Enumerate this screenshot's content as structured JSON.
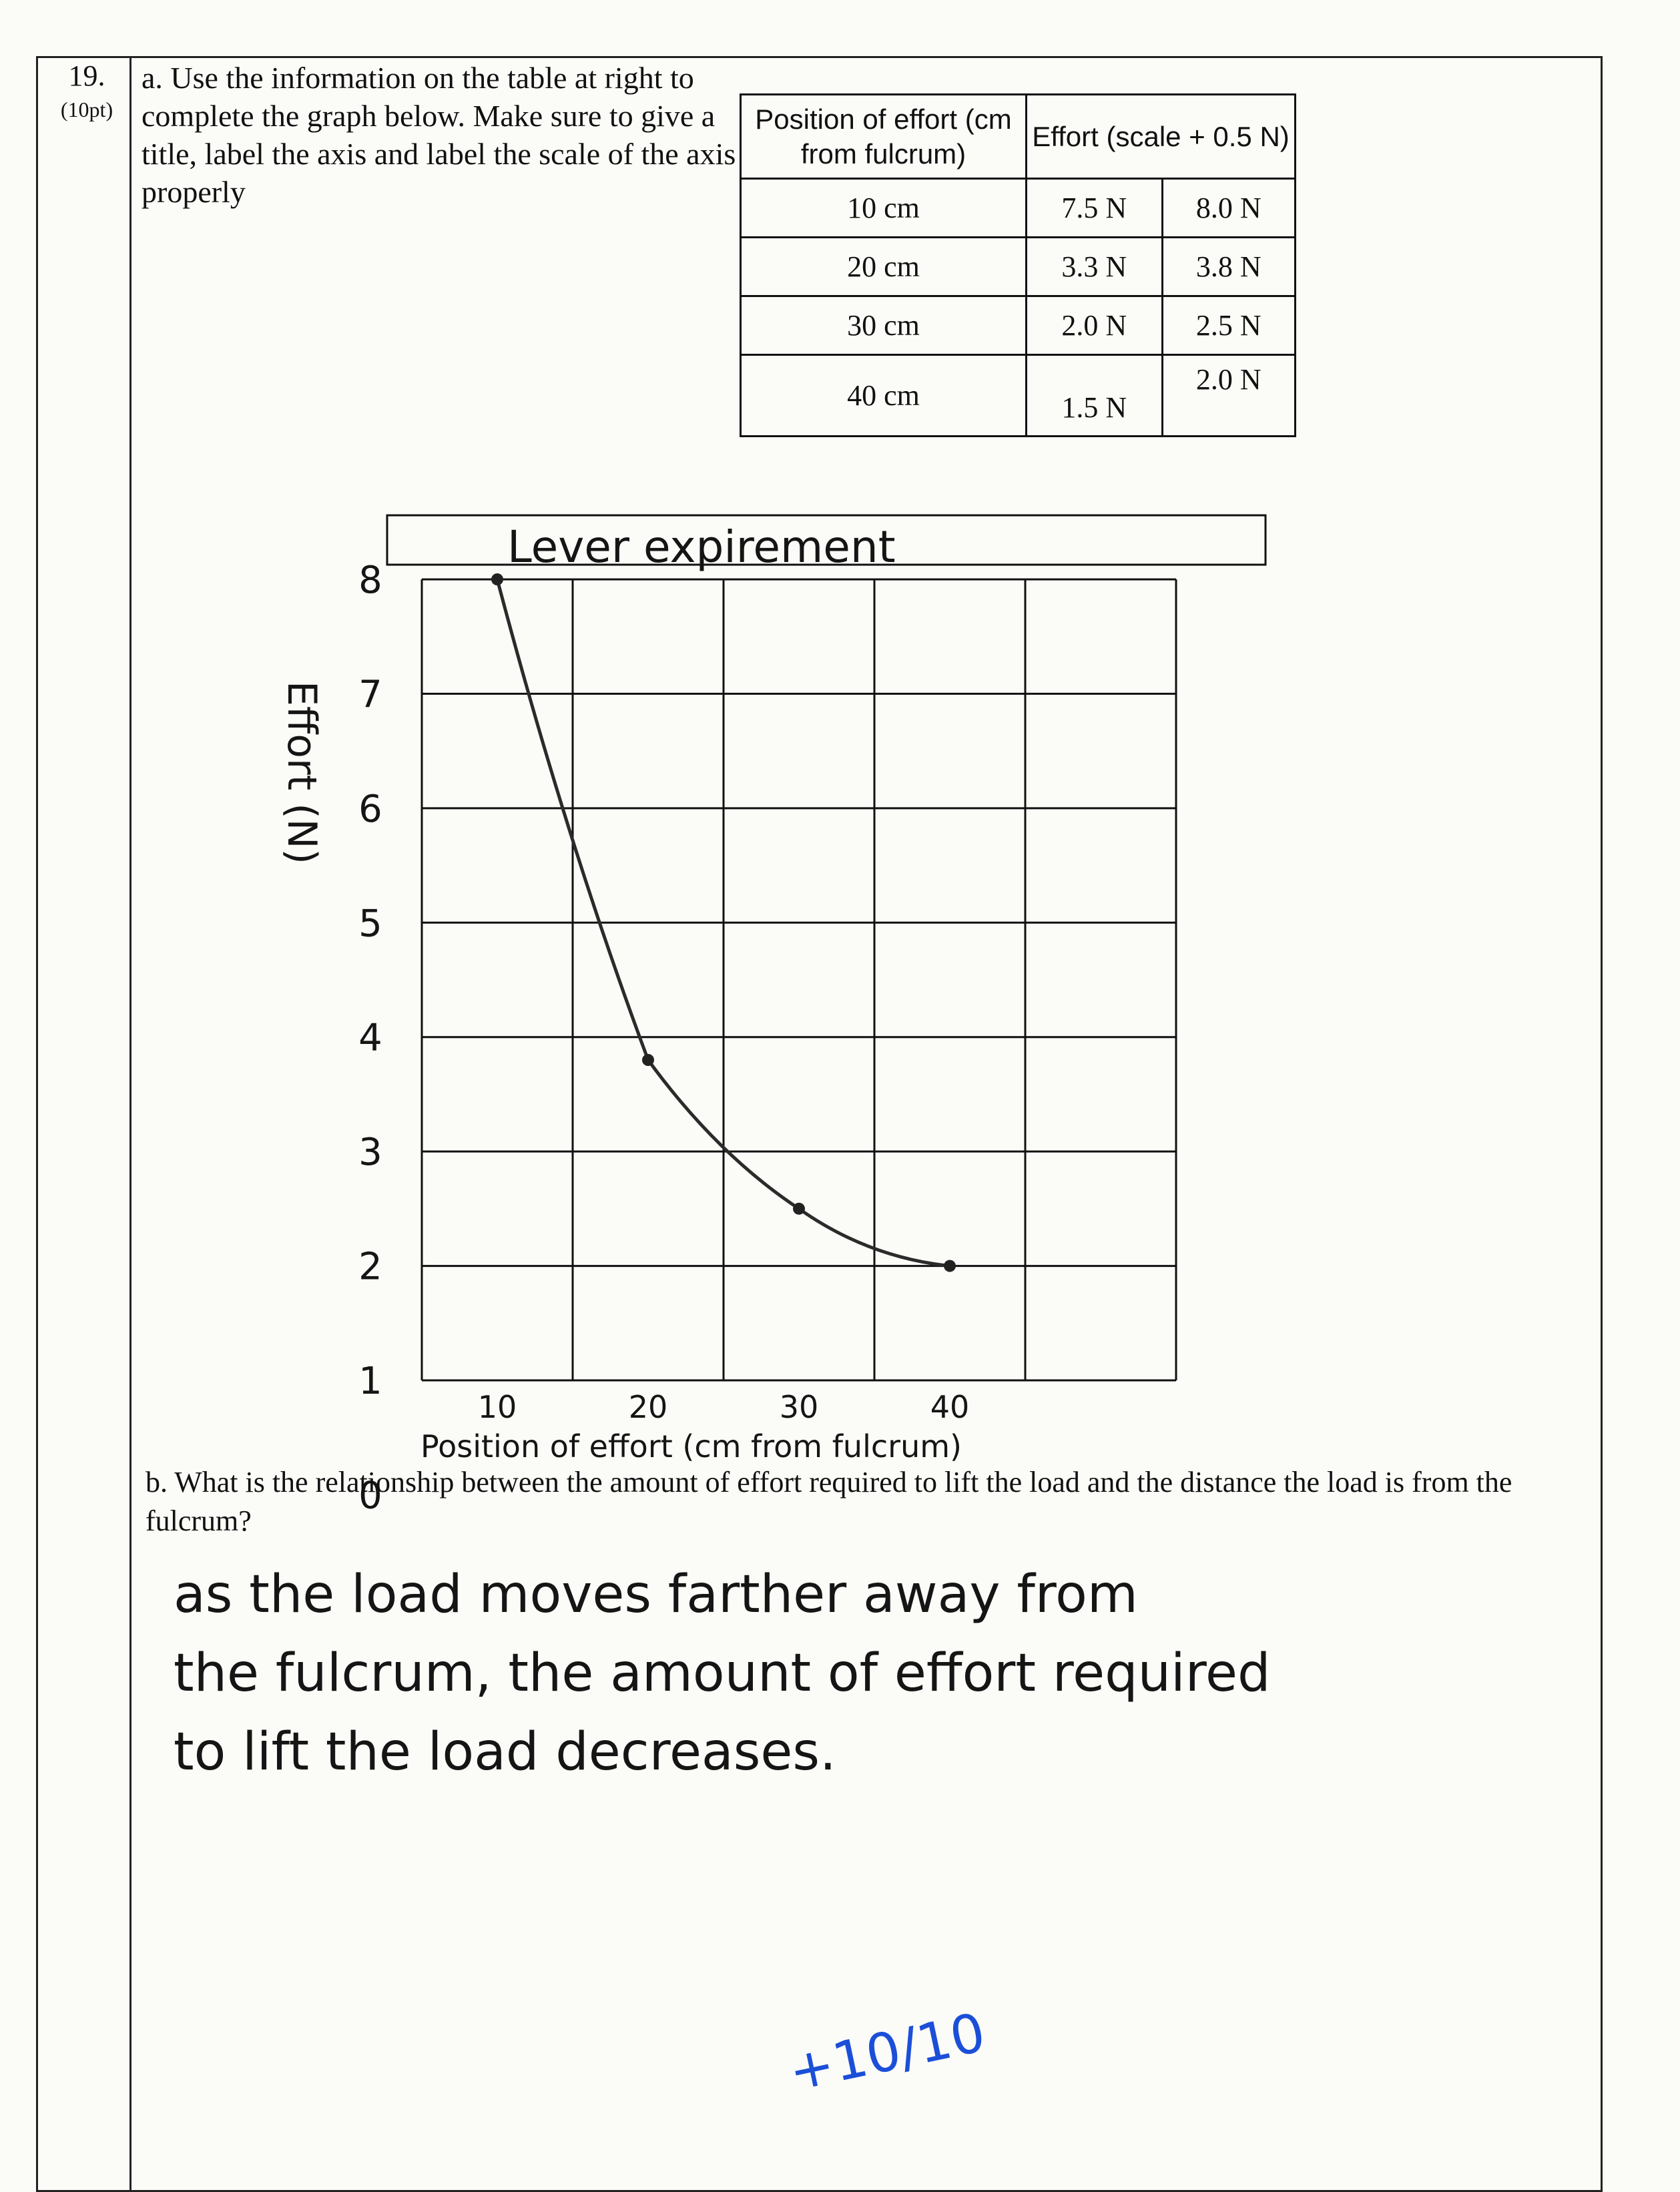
{
  "question": {
    "number": "19.",
    "points": "(10pt)",
    "part_a": "a. Use the information on the table at right to complete the graph below. Make sure to give a title, label the axis and label the scale of the axis properly",
    "part_b": "b. What is the relationship between the amount of effort required to lift the load and the distance the load is from the fulcrum?"
  },
  "table": {
    "header_position": "Position of effort (cm from fulcrum)",
    "header_effort": "Effort (scale + 0.5 N)",
    "rows": [
      {
        "position": "10 cm",
        "e1": "7.5 N",
        "e2": "8.0 N"
      },
      {
        "position": "20 cm",
        "e1": "3.3 N",
        "e2": "3.8 N"
      },
      {
        "position": "30 cm",
        "e1": "2.0 N",
        "e2": "2.5 N"
      },
      {
        "position": "40 cm",
        "e1": "1.5 N",
        "e2": "2.0 N"
      }
    ]
  },
  "chart_data": {
    "type": "line",
    "title": "Lever expirement",
    "xlabel": "Position of effort (cm from fulcrum)",
    "ylabel": "Effort (N)",
    "x_ticks": [
      "10",
      "20",
      "30",
      "40"
    ],
    "y_ticks": [
      "0",
      "1",
      "2",
      "3",
      "4",
      "5",
      "6",
      "7",
      "8"
    ],
    "xlim": [
      5,
      55
    ],
    "ylim": [
      1,
      8
    ],
    "grid": true,
    "series": [
      {
        "x": [
          10,
          20,
          30,
          40
        ],
        "values": [
          8.0,
          3.8,
          2.5,
          2.0
        ]
      }
    ]
  },
  "answer": {
    "line1": "as the load moves farther away from",
    "line2": "the fulcrum, the amount of effort required",
    "line3": "to lift the load decreases."
  },
  "grade": "+10/10"
}
